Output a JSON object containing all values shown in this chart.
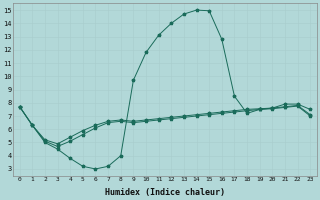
{
  "xlabel": "Humidex (Indice chaleur)",
  "xlim": [
    -0.5,
    23.5
  ],
  "ylim": [
    2.5,
    15.5
  ],
  "yticks": [
    3,
    4,
    5,
    6,
    7,
    8,
    9,
    10,
    11,
    12,
    13,
    14,
    15
  ],
  "xticks": [
    0,
    1,
    2,
    3,
    4,
    5,
    6,
    7,
    8,
    9,
    10,
    11,
    12,
    13,
    14,
    15,
    16,
    17,
    18,
    19,
    20,
    21,
    22,
    23
  ],
  "bg_color": "#b2d8d8",
  "grid_color": "#c8e0e0",
  "line_color": "#1a6b5a",
  "line1_x": [
    0,
    1,
    2,
    3,
    4,
    5,
    6,
    7,
    8,
    9,
    10,
    11,
    12,
    13,
    14,
    15,
    16,
    17,
    18,
    19,
    20,
    21,
    22,
    23
  ],
  "line1_y": [
    7.7,
    6.3,
    5.0,
    4.5,
    3.8,
    3.2,
    3.0,
    3.2,
    4.0,
    9.7,
    11.8,
    13.1,
    14.0,
    14.7,
    15.0,
    14.95,
    12.8,
    8.5,
    7.2,
    7.5,
    7.6,
    7.9,
    7.9,
    7.5
  ],
  "line2_x": [
    0,
    1,
    2,
    3,
    4,
    5,
    6,
    7,
    8,
    9,
    10,
    11,
    12,
    13,
    14,
    15,
    16,
    17,
    18,
    19,
    20,
    21,
    22,
    23
  ],
  "line2_y": [
    7.7,
    6.3,
    5.2,
    4.9,
    5.4,
    5.9,
    6.3,
    6.6,
    6.7,
    6.6,
    6.7,
    6.8,
    6.9,
    7.0,
    7.1,
    7.2,
    7.3,
    7.4,
    7.5,
    7.55,
    7.6,
    7.7,
    7.8,
    7.1
  ],
  "line3_x": [
    0,
    1,
    2,
    3,
    4,
    5,
    6,
    7,
    8,
    9,
    10,
    11,
    12,
    13,
    14,
    15,
    16,
    17,
    18,
    19,
    20,
    21,
    22,
    23
  ],
  "line3_y": [
    7.7,
    6.3,
    5.1,
    4.7,
    5.1,
    5.6,
    6.1,
    6.5,
    6.6,
    6.5,
    6.6,
    6.7,
    6.8,
    6.9,
    7.0,
    7.1,
    7.2,
    7.3,
    7.4,
    7.5,
    7.55,
    7.65,
    7.75,
    7.0
  ]
}
